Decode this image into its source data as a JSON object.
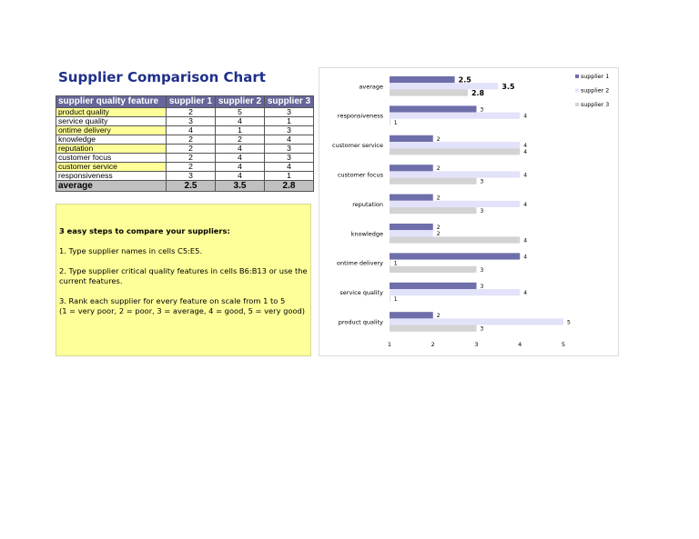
{
  "title": "Supplier Comparison Chart",
  "table": {
    "headers": [
      "supplier quality feature",
      "supplier 1",
      "supplier 2",
      "supplier 3"
    ],
    "rows": [
      {
        "feature": "product quality",
        "s1": "2",
        "s2": "5",
        "s3": "3"
      },
      {
        "feature": "service quality",
        "s1": "3",
        "s2": "4",
        "s3": "1"
      },
      {
        "feature": "ontime delivery",
        "s1": "4",
        "s2": "1",
        "s3": "3"
      },
      {
        "feature": "knowledge",
        "s1": "2",
        "s2": "2",
        "s3": "4"
      },
      {
        "feature": "reputation",
        "s1": "2",
        "s2": "4",
        "s3": "3"
      },
      {
        "feature": "customer focus",
        "s1": "2",
        "s2": "4",
        "s3": "3"
      },
      {
        "feature": "customer service",
        "s1": "2",
        "s2": "4",
        "s3": "4"
      },
      {
        "feature": "responsiveness",
        "s1": "3",
        "s2": "4",
        "s3": "1"
      }
    ],
    "average": {
      "label": "average",
      "s1": "2.5",
      "s2": "3.5",
      "s3": "2.8"
    }
  },
  "steps": {
    "heading": "3 easy steps to compare your suppliers:",
    "step1": "1. Type supplier names in cells C5:E5.",
    "step2": "2. Type supplier critical quality features in cells B6:B13 or use the current features.",
    "step3a": "3. Rank each supplier for every feature on scale from 1 to 5",
    "step3b": "(1 = very poor, 2 = poor, 3 = average, 4 = good, 5 = very good)"
  },
  "chart_data": {
    "type": "bar",
    "orientation": "horizontal",
    "categories": [
      "average",
      "responsiveness",
      "customer service",
      "customer focus",
      "reputation",
      "knowledge",
      "ontime delivery",
      "service quality",
      "product quality"
    ],
    "series": [
      {
        "name": "supplier 1",
        "color": "#6e6eaa",
        "values": [
          2.5,
          3,
          2,
          2,
          2,
          2,
          4,
          3,
          2
        ]
      },
      {
        "name": "supplier 2",
        "color": "#e2e2fa",
        "values": [
          3.5,
          4,
          4,
          4,
          4,
          2,
          1,
          4,
          5
        ]
      },
      {
        "name": "supplier 3",
        "color": "#d3d3d3",
        "values": [
          2.8,
          1,
          4,
          3,
          3,
          4,
          3,
          1,
          3
        ]
      }
    ],
    "xlim": [
      1,
      5
    ],
    "xticks": [
      "1",
      "2",
      "3",
      "4",
      "5"
    ],
    "legend": "top-right",
    "grid": false
  }
}
